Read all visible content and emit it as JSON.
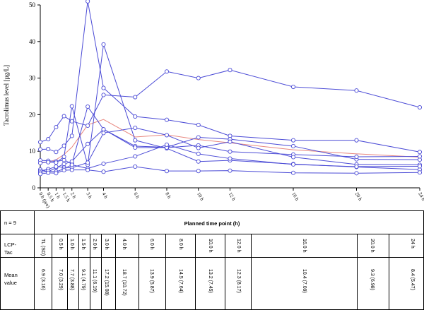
{
  "chart_data": {
    "type": "line",
    "ylabel": "Tacrolimus level [µg/L]",
    "ylim": [
      0,
      50
    ],
    "yticks": [
      0,
      10,
      20,
      30,
      40,
      50
    ],
    "x_hours": [
      0,
      0.5,
      1,
      1.5,
      2,
      3,
      4,
      6,
      8,
      10,
      12,
      16,
      20,
      24
    ],
    "xtick_labels": [
      "0 h (pre)",
      "0.5 h",
      "1 h",
      "1.5 h",
      "2 h",
      "3 h",
      "4 h",
      "6 h",
      "8 h",
      "10 h",
      "12 h",
      "16 h",
      "20 h",
      "24 h"
    ],
    "series": [
      {
        "values": [
          12.5,
          13.3,
          16.6,
          19.6,
          18.2,
          17.0,
          25.4,
          24.8,
          31.8,
          30.0,
          32.2,
          27.6,
          26.6,
          22.0
        ]
      },
      {
        "values": [
          10.5,
          10.6,
          9.8,
          11.5,
          14.2,
          51.0,
          27.3,
          19.5,
          18.6,
          17.2,
          14.2,
          13.0,
          13.0,
          9.8
        ]
      },
      {
        "values": [
          7.5,
          7.4,
          7.2,
          7.6,
          6.6,
          22.2,
          16.0,
          11.4,
          11.1,
          13.8,
          13.3,
          11.4,
          7.8,
          7.7
        ]
      },
      {
        "values": [
          6.8,
          7.0,
          6.9,
          8.5,
          22.3,
          6.3,
          39.2,
          13.0,
          10.8,
          7.2,
          7.5,
          6.5,
          5.7,
          5.0
        ]
      },
      {
        "values": [
          5.0,
          4.4,
          5.5,
          6.5,
          7.2,
          12.0,
          16.0,
          11.0,
          11.0,
          11.6,
          9.9,
          9.1,
          8.5,
          8.6
        ]
      },
      {
        "values": [
          4.6,
          5.1,
          5.8,
          5.6,
          5.5,
          6.9,
          15.0,
          16.4,
          14.4,
          10.9,
          12.6,
          8.4,
          6.4,
          6.3
        ]
      },
      {
        "values": [
          4.2,
          4.6,
          4.4,
          5.2,
          6.3,
          5.3,
          6.6,
          8.6,
          11.8,
          9.3,
          8.0,
          6.4,
          5.8,
          5.9
        ]
      },
      {
        "values": [
          3.8,
          4.1,
          4.0,
          4.8,
          4.9,
          4.9,
          4.4,
          5.8,
          4.6,
          4.6,
          4.7,
          4.1,
          4.0,
          4.2
        ]
      }
    ],
    "mean_series": {
      "values": [
        6.9,
        7.0,
        7.7,
        9.1,
        11.1,
        17.2,
        18.7,
        13.9,
        14.5,
        13.2,
        12.3,
        10.4,
        9.3,
        8.4
      ]
    },
    "colors": {
      "series": "#4b4bd6",
      "mean": "#e8877f"
    }
  },
  "table": {
    "n_label": "n = 9",
    "header": "Planned time point (h)",
    "row1_label_line1": "LCP-",
    "row1_label_line2": "Tac",
    "row2_label_line1": "Mean",
    "row2_label_line2": "value",
    "time_labels": [
      "TL (SD)",
      "0.5 h",
      "1.0 h",
      "1.5 h",
      "2.0 h",
      "3.0 h",
      "4.0 h",
      "6.0 h",
      "8.0 h",
      "10.0 h",
      "12.0 h",
      "16.0 h",
      "20.0 h",
      "24 h"
    ],
    "mean_values": [
      "6.9 (3.16)",
      "7.0 (3.29)",
      "7.7 (3.88)",
      "9.1 (4.79)",
      "11.1 (6.19)",
      "17.2 (15.08)",
      "18.7 (10.72)",
      "13.9 (5.87)",
      "14.5 (7.64)",
      "13.2 (7.45)",
      "12.3 (8.17)",
      "10.4 (7.09)",
      "9.3 (6.98)",
      "8.4 (5.47)"
    ]
  }
}
